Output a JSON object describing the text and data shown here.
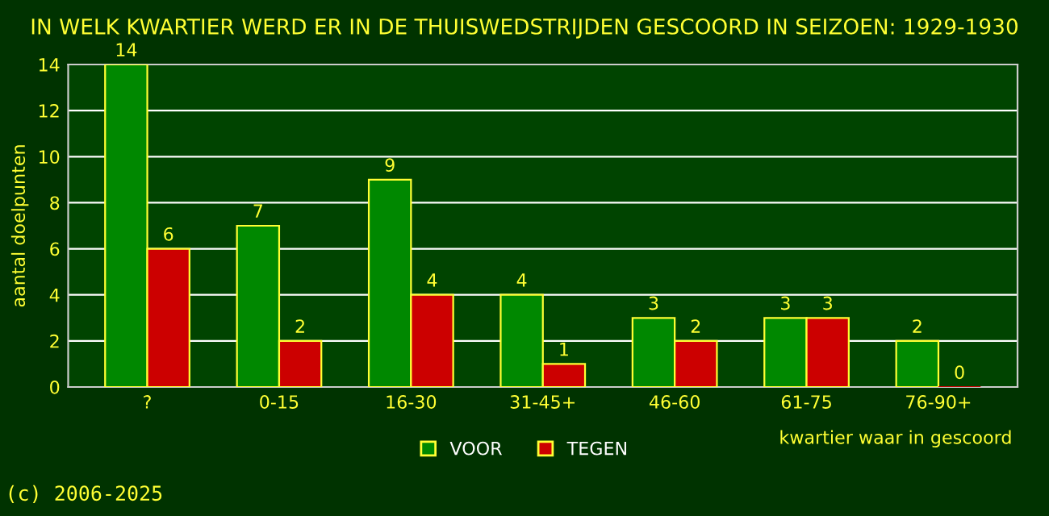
{
  "chart_data": {
    "type": "bar",
    "title": "IN WELK KWARTIER WERD ER IN DE THUISWEDSTRIJDEN GESCOORD IN SEIZOEN: 1929-1930",
    "xlabel": "kwartier waar in gescoord",
    "ylabel": "aantal doelpunten",
    "categories": [
      "?",
      "0-15",
      "16-30",
      "31-45+",
      "46-60",
      "61-75",
      "76-90+"
    ],
    "series": [
      {
        "name": "VOOR",
        "color": "#008800",
        "values": [
          14,
          7,
          9,
          4,
          3,
          3,
          2
        ]
      },
      {
        "name": "TEGEN",
        "color": "#cc0000",
        "values": [
          6,
          2,
          4,
          1,
          2,
          3,
          0
        ]
      }
    ],
    "ylim": [
      0,
      14
    ],
    "yticks": [
      0,
      2,
      4,
      6,
      8,
      10,
      12,
      14
    ],
    "grid": "y",
    "legend": "bottom",
    "data_labels": true,
    "annotations": [
      "(c) 2006-2025"
    ]
  }
}
